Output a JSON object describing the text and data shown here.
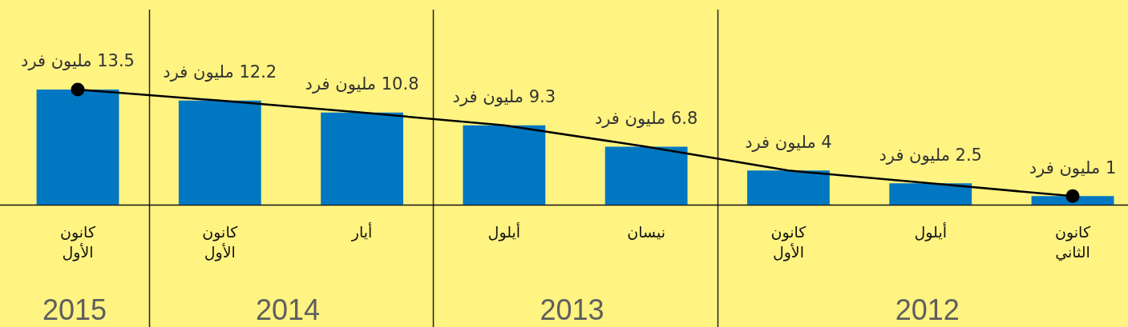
{
  "chart_data": {
    "type": "bar",
    "categories": [
      "كانون الأول",
      "كانون الأول",
      "أيار",
      "أيلول",
      "نيسان",
      "كانون الأول",
      "أيلول",
      "كانون الثاني"
    ],
    "series": [
      {
        "color": "#0077c0",
        "values": [
          13.5,
          12.2,
          10.8,
          9.3,
          6.8,
          4,
          2.5,
          1
        ],
        "value_labels": [
          "13.5 مليون فرد",
          "12.2 مليون فرد",
          "10.8 مليون فرد",
          "9.3 مليون فرد",
          "6.8 مليون فرد",
          "4 مليون فرد",
          "2.5 مليون فرد",
          "1 مليون فرد"
        ]
      },
      {
        "type": "line",
        "color": "#000000",
        "values": [
          13.5,
          12.2,
          10.8,
          9.3,
          6.8,
          4,
          2.5,
          1
        ],
        "marker": "none"
      },
      {
        "type": "scatter",
        "color": "#000000",
        "values": [
          13.5,
          null,
          null,
          null,
          null,
          null,
          null,
          1
        ],
        "marker": "circle"
      }
    ],
    "annotations": [
      "2015",
      "2014",
      "2013",
      "2012"
    ],
    "tick_labels": "x"
  }
}
